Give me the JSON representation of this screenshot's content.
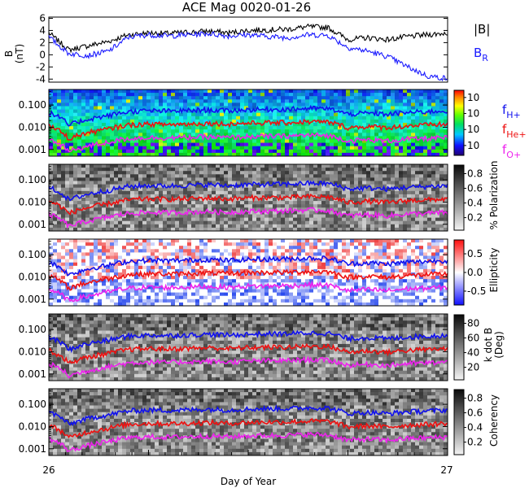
{
  "title": "ACE Mag 0020-01-26",
  "x_axis": {
    "label": "Day of Year",
    "range": [
      26,
      27
    ],
    "ticks": [
      "26",
      "27"
    ]
  },
  "legend": {
    "b_total": "|B|",
    "b_r": "B",
    "b_r_sub": "R",
    "f_h": "f",
    "f_h_sub": "H+",
    "f_he": "f",
    "f_he_sub": "He+",
    "f_o": "f",
    "f_o_sub": "O+"
  },
  "colors": {
    "b_total": "#000000",
    "b_r": "#1a1aff",
    "f_h": "#1010ee",
    "f_he": "#ee1010",
    "f_o": "#ee22ee"
  },
  "chart_data": [
    {
      "type": "line",
      "panel": "magnetic-field",
      "ylabel": "B",
      "ylabel_unit": "(nT)",
      "ylim": [
        -4.5,
        6.2
      ],
      "yticks": [
        "6",
        "4",
        "2",
        "0",
        "-2",
        "-4"
      ],
      "x": [
        26.0,
        26.05,
        26.1,
        26.15,
        26.2,
        26.25,
        26.3,
        26.35,
        26.4,
        26.45,
        26.5,
        26.55,
        26.6,
        26.65,
        26.7,
        26.75,
        26.8,
        26.85,
        26.9,
        26.95,
        27.0
      ],
      "series": [
        {
          "name": "|B|",
          "values": [
            3.6,
            0.8,
            1.5,
            2.2,
            3.3,
            3.6,
            3.5,
            3.7,
            3.9,
            3.6,
            4.0,
            4.1,
            4.2,
            4.6,
            4.5,
            2.5,
            2.8,
            2.5,
            3.0,
            3.3,
            3.6
          ]
        },
        {
          "name": "B_R",
          "values": [
            2.9,
            0.2,
            -0.1,
            0.6,
            2.9,
            3.3,
            3.1,
            3.3,
            3.5,
            3.1,
            3.3,
            3.0,
            2.8,
            3.3,
            3.2,
            1.2,
            0.6,
            -0.3,
            -2.0,
            -3.5,
            -3.9
          ]
        }
      ]
    },
    {
      "type": "heatmap",
      "panel": "spectral-power",
      "colorbar_ticks": [
        "10",
        "10",
        "10",
        "10"
      ],
      "yscale": "log",
      "ylim": [
        0.0005,
        0.5
      ],
      "yticks": [
        "0.100",
        "0.010",
        "0.001"
      ],
      "overlay_series": [
        "f_H+",
        "f_He+",
        "f_O+"
      ]
    },
    {
      "type": "heatmap",
      "panel": "polarization",
      "colorbar_label": "% Polarization",
      "colorbar_ticks": [
        "0.8",
        "0.6",
        "0.4",
        "0.2"
      ],
      "yscale": "log",
      "ylim": [
        0.0005,
        0.5
      ],
      "yticks": [
        "0.100",
        "0.010",
        "0.001"
      ]
    },
    {
      "type": "heatmap",
      "panel": "ellipticity",
      "colorbar_label": "Ellipticity",
      "colorbar_ticks": [
        "0.5",
        "0.0",
        "-0.5"
      ],
      "yscale": "log",
      "ylim": [
        0.0005,
        0.5
      ],
      "yticks": [
        "0.100",
        "0.010",
        "0.001"
      ]
    },
    {
      "type": "heatmap",
      "panel": "k-dot-b",
      "colorbar_label": "k dot B",
      "colorbar_label_unit": "(Deg)",
      "colorbar_ticks": [
        "80",
        "60",
        "40",
        "20"
      ],
      "yscale": "log",
      "ylim": [
        0.0005,
        0.5
      ],
      "yticks": [
        "0.100",
        "0.010",
        "0.001"
      ]
    },
    {
      "type": "heatmap",
      "panel": "coherency",
      "colorbar_label": "Coherency",
      "colorbar_ticks": [
        "0.8",
        "0.6",
        "0.4",
        "0.2"
      ],
      "yscale": "log",
      "ylim": [
        0.0005,
        0.5
      ],
      "yticks": [
        "0.100",
        "0.010",
        "0.001"
      ]
    },
    {
      "type": "line",
      "panel": "gyrofrequencies",
      "yscale": "log",
      "x": [
        26.0,
        26.05,
        26.1,
        26.15,
        26.2,
        26.25,
        26.3,
        26.35,
        26.4,
        26.45,
        26.5,
        26.55,
        26.6,
        26.65,
        26.7,
        26.75,
        26.8,
        26.85,
        26.9,
        26.95,
        27.0
      ],
      "series": [
        {
          "name": "f_H+",
          "values": [
            0.045,
            0.012,
            0.023,
            0.033,
            0.05,
            0.055,
            0.053,
            0.056,
            0.06,
            0.055,
            0.061,
            0.063,
            0.064,
            0.07,
            0.068,
            0.038,
            0.043,
            0.038,
            0.046,
            0.05,
            0.055
          ]
        },
        {
          "name": "f_He+",
          "values": [
            0.0112,
            0.003,
            0.0057,
            0.0083,
            0.0125,
            0.0138,
            0.0133,
            0.014,
            0.015,
            0.0138,
            0.0152,
            0.0158,
            0.016,
            0.0175,
            0.017,
            0.0095,
            0.0108,
            0.0095,
            0.0115,
            0.0125,
            0.0138
          ]
        },
        {
          "name": "f_O+",
          "values": [
            0.0028,
            0.0008,
            0.0014,
            0.0021,
            0.0031,
            0.0034,
            0.0033,
            0.0035,
            0.0037,
            0.0034,
            0.0038,
            0.0039,
            0.004,
            0.0044,
            0.0042,
            0.0024,
            0.0027,
            0.0024,
            0.0029,
            0.0031,
            0.0034
          ]
        }
      ]
    }
  ]
}
